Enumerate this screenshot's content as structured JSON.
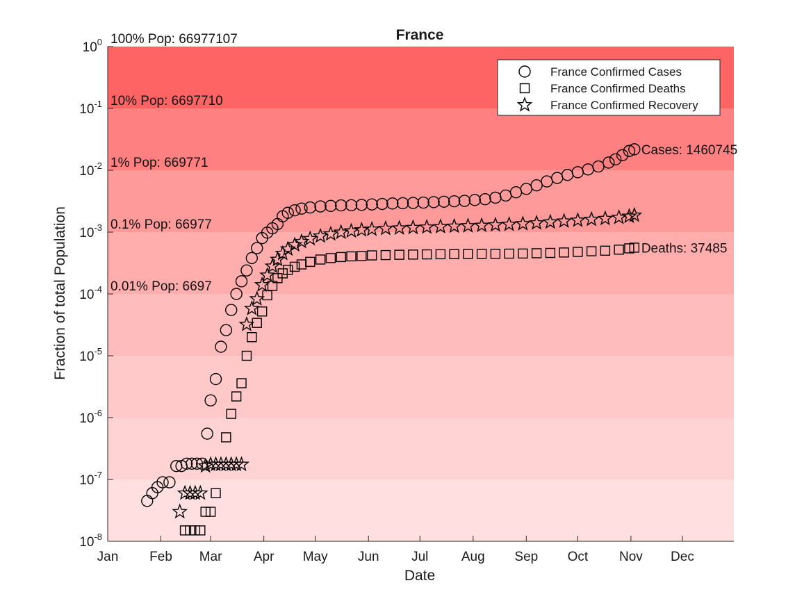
{
  "chart_data": {
    "type": "scatter",
    "title": "France",
    "xlabel": "Date",
    "ylabel": "Fraction of total Population",
    "y_scale": "log",
    "ylim": [
      1e-08,
      1
    ],
    "y_ticks": [
      {
        "value": 1e-08,
        "base": "10",
        "exp": "-8"
      },
      {
        "value": 1e-07,
        "base": "10",
        "exp": "-7"
      },
      {
        "value": 1e-06,
        "base": "10",
        "exp": "-6"
      },
      {
        "value": 1e-05,
        "base": "10",
        "exp": "-5"
      },
      {
        "value": 0.0001,
        "base": "10",
        "exp": "-4"
      },
      {
        "value": 0.001,
        "base": "10",
        "exp": "-3"
      },
      {
        "value": 0.01,
        "base": "10",
        "exp": "-2"
      },
      {
        "value": 0.1,
        "base": "10",
        "exp": "-1"
      },
      {
        "value": 1,
        "base": "10",
        "exp": "0"
      }
    ],
    "xlim": [
      "2020-01-01",
      "2020-12-31"
    ],
    "x_ticks": [
      {
        "date": "2020-01-01",
        "label": "Jan"
      },
      {
        "date": "2020-02-01",
        "label": "Feb"
      },
      {
        "date": "2020-03-01",
        "label": "Mar"
      },
      {
        "date": "2020-04-01",
        "label": "Apr"
      },
      {
        "date": "2020-05-01",
        "label": "May"
      },
      {
        "date": "2020-06-01",
        "label": "Jun"
      },
      {
        "date": "2020-07-01",
        "label": "Jul"
      },
      {
        "date": "2020-08-01",
        "label": "Aug"
      },
      {
        "date": "2020-09-01",
        "label": "Sep"
      },
      {
        "date": "2020-10-01",
        "label": "Oct"
      },
      {
        "date": "2020-11-01",
        "label": "Nov"
      },
      {
        "date": "2020-12-01",
        "label": "Dec"
      }
    ],
    "grid": false,
    "legend_position": "top-right",
    "background_bands": [
      {
        "from": 0.1,
        "to": 1,
        "color": "#ff6464",
        "label": "100% Pop: 66977107",
        "label_at": 1
      },
      {
        "from": 0.01,
        "to": 0.1,
        "color": "#ff8080",
        "label": "10% Pop: 6697710",
        "label_at": 0.1
      },
      {
        "from": 0.001,
        "to": 0.01,
        "color": "#ff9a9a",
        "label": "1% Pop: 669771",
        "label_at": 0.01
      },
      {
        "from": 0.0001,
        "to": 0.001,
        "color": "#ffadad",
        "label": "0.1% Pop: 66977",
        "label_at": 0.001
      },
      {
        "from": 1e-05,
        "to": 0.0001,
        "color": "#ffbcbc",
        "label": "0.01% Pop: 6697",
        "label_at": 0.0001
      },
      {
        "from": 1e-06,
        "to": 1e-05,
        "color": "#ffc9c9",
        "label": "",
        "label_at": 1e-05
      },
      {
        "from": 1e-07,
        "to": 1e-06,
        "color": "#ffd3d3",
        "label": "",
        "label_at": 1e-06
      },
      {
        "from": 1e-08,
        "to": 1e-07,
        "color": "#ffdfdf",
        "label": "",
        "label_at": 1e-07
      }
    ],
    "series": [
      {
        "name": "France Confirmed Cases",
        "marker": "circle",
        "points": [
          [
            "2020-01-24",
            4.5e-08
          ],
          [
            "2020-01-27",
            6e-08
          ],
          [
            "2020-01-30",
            7.5e-08
          ],
          [
            "2020-02-02",
            9e-08
          ],
          [
            "2020-02-06",
            9e-08
          ],
          [
            "2020-02-10",
            1.65e-07
          ],
          [
            "2020-02-13",
            1.65e-07
          ],
          [
            "2020-02-16",
            1.8e-07
          ],
          [
            "2020-02-19",
            1.8e-07
          ],
          [
            "2020-02-22",
            1.8e-07
          ],
          [
            "2020-02-25",
            1.8e-07
          ],
          [
            "2020-02-28",
            5.5e-07
          ],
          [
            "2020-03-01",
            1.9e-06
          ],
          [
            "2020-03-04",
            4.2e-06
          ],
          [
            "2020-03-07",
            1.4e-05
          ],
          [
            "2020-03-10",
            2.6e-05
          ],
          [
            "2020-03-13",
            5.5e-05
          ],
          [
            "2020-03-16",
            0.0001
          ],
          [
            "2020-03-19",
            0.00016
          ],
          [
            "2020-03-22",
            0.00024
          ],
          [
            "2020-03-25",
            0.00038
          ],
          [
            "2020-03-28",
            0.00055
          ],
          [
            "2020-03-31",
            0.0008
          ],
          [
            "2020-04-03",
            0.00098
          ],
          [
            "2020-04-06",
            0.00115
          ],
          [
            "2020-04-09",
            0.00135
          ],
          [
            "2020-04-12",
            0.0018
          ],
          [
            "2020-04-15",
            0.00205
          ],
          [
            "2020-04-19",
            0.00225
          ],
          [
            "2020-04-23",
            0.0024
          ],
          [
            "2020-04-28",
            0.0025
          ],
          [
            "2020-05-04",
            0.0026
          ],
          [
            "2020-05-10",
            0.00265
          ],
          [
            "2020-05-16",
            0.0027
          ],
          [
            "2020-05-22",
            0.00272
          ],
          [
            "2020-05-28",
            0.00275
          ],
          [
            "2020-06-03",
            0.0028
          ],
          [
            "2020-06-09",
            0.00285
          ],
          [
            "2020-06-15",
            0.0029
          ],
          [
            "2020-06-21",
            0.00293
          ],
          [
            "2020-06-27",
            0.00296
          ],
          [
            "2020-07-03",
            0.003
          ],
          [
            "2020-07-09",
            0.00305
          ],
          [
            "2020-07-15",
            0.0031
          ],
          [
            "2020-07-21",
            0.00315
          ],
          [
            "2020-07-27",
            0.0032
          ],
          [
            "2020-08-02",
            0.0033
          ],
          [
            "2020-08-08",
            0.0034
          ],
          [
            "2020-08-14",
            0.0036
          ],
          [
            "2020-08-20",
            0.0039
          ],
          [
            "2020-08-26",
            0.0044
          ],
          [
            "2020-09-01",
            0.005
          ],
          [
            "2020-09-07",
            0.0057
          ],
          [
            "2020-09-13",
            0.0066
          ],
          [
            "2020-09-19",
            0.0075
          ],
          [
            "2020-09-25",
            0.0084
          ],
          [
            "2020-10-01",
            0.0093
          ],
          [
            "2020-10-07",
            0.0103
          ],
          [
            "2020-10-13",
            0.0115
          ],
          [
            "2020-10-19",
            0.0133
          ],
          [
            "2020-10-23",
            0.015
          ],
          [
            "2020-10-27",
            0.0175
          ],
          [
            "2020-10-31",
            0.0205
          ],
          [
            "2020-11-03",
            0.0218
          ]
        ]
      },
      {
        "name": "France Confirmed Deaths",
        "marker": "square",
        "points": [
          [
            "2020-02-15",
            1.5e-08
          ],
          [
            "2020-02-18",
            1.5e-08
          ],
          [
            "2020-02-21",
            1.5e-08
          ],
          [
            "2020-02-24",
            1.5e-08
          ],
          [
            "2020-02-27",
            3e-08
          ],
          [
            "2020-03-01",
            3e-08
          ],
          [
            "2020-03-04",
            6e-08
          ],
          [
            "2020-03-10",
            4.8e-07
          ],
          [
            "2020-03-13",
            1.15e-06
          ],
          [
            "2020-03-16",
            2.2e-06
          ],
          [
            "2020-03-19",
            3.6e-06
          ],
          [
            "2020-03-22",
            1e-05
          ],
          [
            "2020-03-25",
            2e-05
          ],
          [
            "2020-03-28",
            3.4e-05
          ],
          [
            "2020-03-31",
            5.2e-05
          ],
          [
            "2020-04-03",
            9.5e-05
          ],
          [
            "2020-04-06",
            0.000135
          ],
          [
            "2020-04-09",
            0.00018
          ],
          [
            "2020-04-12",
            0.000215
          ],
          [
            "2020-04-15",
            0.000245
          ],
          [
            "2020-04-19",
            0.000275
          ],
          [
            "2020-04-23",
            0.0003
          ],
          [
            "2020-04-28",
            0.00033
          ],
          [
            "2020-05-04",
            0.00036
          ],
          [
            "2020-05-10",
            0.00038
          ],
          [
            "2020-05-16",
            0.000395
          ],
          [
            "2020-05-22",
            0.000405
          ],
          [
            "2020-05-28",
            0.00041
          ],
          [
            "2020-06-03",
            0.00042
          ],
          [
            "2020-06-11",
            0.000425
          ],
          [
            "2020-06-19",
            0.00043
          ],
          [
            "2020-06-27",
            0.000433
          ],
          [
            "2020-07-05",
            0.000436
          ],
          [
            "2020-07-13",
            0.000438
          ],
          [
            "2020-07-21",
            0.00044
          ],
          [
            "2020-07-29",
            0.000442
          ],
          [
            "2020-08-06",
            0.000444
          ],
          [
            "2020-08-14",
            0.000446
          ],
          [
            "2020-08-22",
            0.000448
          ],
          [
            "2020-08-30",
            0.00045
          ],
          [
            "2020-09-07",
            0.000455
          ],
          [
            "2020-09-15",
            0.00046
          ],
          [
            "2020-09-23",
            0.000468
          ],
          [
            "2020-10-01",
            0.000478
          ],
          [
            "2020-10-09",
            0.00049
          ],
          [
            "2020-10-17",
            0.0005
          ],
          [
            "2020-10-25",
            0.00052
          ],
          [
            "2020-10-31",
            0.000545
          ],
          [
            "2020-11-03",
            0.00056
          ]
        ]
      },
      {
        "name": "France Confirmed Recovery",
        "marker": "star",
        "points": [
          [
            "2020-02-12",
            3e-08
          ],
          [
            "2020-02-15",
            6e-08
          ],
          [
            "2020-02-18",
            6e-08
          ],
          [
            "2020-02-21",
            6e-08
          ],
          [
            "2020-02-24",
            6e-08
          ],
          [
            "2020-02-27",
            1.65e-07
          ],
          [
            "2020-03-01",
            1.75e-07
          ],
          [
            "2020-03-04",
            1.75e-07
          ],
          [
            "2020-03-07",
            1.75e-07
          ],
          [
            "2020-03-10",
            1.75e-07
          ],
          [
            "2020-03-13",
            1.75e-07
          ],
          [
            "2020-03-16",
            1.75e-07
          ],
          [
            "2020-03-19",
            1.75e-07
          ],
          [
            "2020-03-22",
            3.2e-05
          ],
          [
            "2020-03-25",
            5.8e-05
          ],
          [
            "2020-03-28",
            8.3e-05
          ],
          [
            "2020-03-31",
            0.00014
          ],
          [
            "2020-04-03",
            0.0002
          ],
          [
            "2020-04-06",
            0.00028
          ],
          [
            "2020-04-09",
            0.00036
          ],
          [
            "2020-04-12",
            0.00045
          ],
          [
            "2020-04-15",
            0.00053
          ],
          [
            "2020-04-19",
            0.00062
          ],
          [
            "2020-04-23",
            0.0007
          ],
          [
            "2020-04-28",
            0.00078
          ],
          [
            "2020-05-04",
            0.00086
          ],
          [
            "2020-05-10",
            0.00093
          ],
          [
            "2020-05-16",
            0.00099
          ],
          [
            "2020-05-22",
            0.00104
          ],
          [
            "2020-05-28",
            0.00108
          ],
          [
            "2020-06-03",
            0.00111
          ],
          [
            "2020-06-11",
            0.00114
          ],
          [
            "2020-06-19",
            0.00116
          ],
          [
            "2020-06-27",
            0.00118
          ],
          [
            "2020-07-05",
            0.0012
          ],
          [
            "2020-07-13",
            0.00122
          ],
          [
            "2020-07-21",
            0.00124
          ],
          [
            "2020-07-29",
            0.00126
          ],
          [
            "2020-08-06",
            0.00128
          ],
          [
            "2020-08-14",
            0.0013
          ],
          [
            "2020-08-22",
            0.00133
          ],
          [
            "2020-08-30",
            0.00136
          ],
          [
            "2020-09-07",
            0.0014
          ],
          [
            "2020-09-15",
            0.00145
          ],
          [
            "2020-09-23",
            0.0015
          ],
          [
            "2020-10-01",
            0.00155
          ],
          [
            "2020-10-09",
            0.0016
          ],
          [
            "2020-10-17",
            0.00165
          ],
          [
            "2020-10-25",
            0.00172
          ],
          [
            "2020-10-31",
            0.0018
          ],
          [
            "2020-11-03",
            0.00187
          ]
        ]
      }
    ],
    "end_labels": [
      {
        "text": "Cases: 1460745",
        "date": "2020-11-03",
        "value": 0.0218
      },
      {
        "text": "Deaths: 37485",
        "date": "2020-11-03",
        "value": 0.00056
      }
    ]
  }
}
